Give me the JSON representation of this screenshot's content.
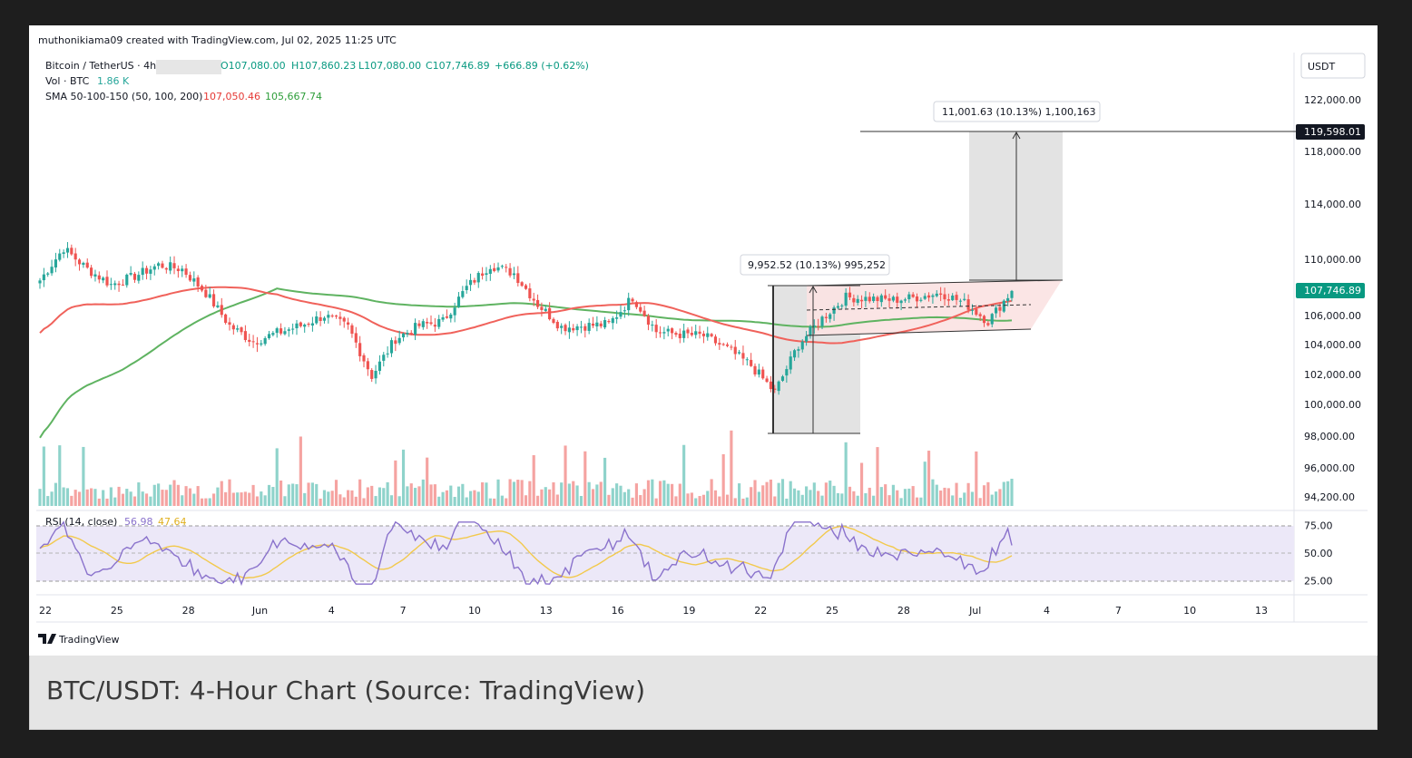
{
  "header": {
    "created_line": "muthonikiama09 created with TradingView.com, Jul 02, 2025 11:25 UTC",
    "symbol": "Bitcoin / TetherUS · 4h",
    "ohlc": {
      "open": "O107,080.00",
      "high": "H107,860.23",
      "low": "L107,080.00",
      "close": "C107,746.89",
      "change": "+666.89 (+0.62%)"
    },
    "vol_label": "Vol · BTC",
    "vol_value": "1.86 K",
    "sma_label": "SMA 50-100-150 (50, 100, 200)",
    "sma_value_1": "107,050.46",
    "sma_value_2": "105,667.74"
  },
  "currency_button": "USDT",
  "price_axis": [
    "122,000.00",
    "118,000.00",
    "114,000.00",
    "110,000.00",
    "106,000.00",
    "104,000.00",
    "102,000.00",
    "100,000.00",
    "98,000.00",
    "96,000.00",
    "94,200.00"
  ],
  "price_tags": {
    "target": "119,598.01",
    "current": "107,746.89"
  },
  "measure_labels": {
    "pole": "9,952.52 (10.13%) 995,252",
    "projection": "11,001.63 (10.13%) 1,100,163"
  },
  "rsi": {
    "label": "RSI (14, close)",
    "value_1": "56.98",
    "value_2": "47.64",
    "axis": [
      "75.00",
      "50.00",
      "25.00"
    ]
  },
  "time_axis": [
    "22",
    "25",
    "28",
    "Jun",
    "4",
    "7",
    "10",
    "13",
    "16",
    "19",
    "22",
    "25",
    "28",
    "Jul",
    "4",
    "7",
    "10",
    "13"
  ],
  "logo_text": "TradingView",
  "caption": "BTC/USDT: 4-Hour Chart (Source: TradingView)",
  "colors": {
    "up": "#26a69a",
    "down": "#ef5350",
    "sma_fast": "#f0625b",
    "sma_slow": "#5fb361",
    "rsi_line": "#8a72cc",
    "rsi_ma": "#f2c94c",
    "rsi_band": "#ece8f8"
  },
  "chart_data": {
    "type": "candlestick",
    "title": "Bitcoin / TetherUS · 4h",
    "ylim": [
      94200,
      123000
    ],
    "x_ticks": [
      "22",
      "25",
      "28",
      "Jun",
      "4",
      "7",
      "10",
      "13",
      "16",
      "19",
      "22",
      "25",
      "28",
      "Jul",
      "4",
      "7",
      "10",
      "13"
    ],
    "close_path": [
      {
        "x": "22 May",
        "y": 108500
      },
      {
        "x": "23 May",
        "y": 110800
      },
      {
        "x": "24 May",
        "y": 109300
      },
      {
        "x": "25 May",
        "y": 108200
      },
      {
        "x": "26 May",
        "y": 108800
      },
      {
        "x": "27 May",
        "y": 109600
      },
      {
        "x": "28 May",
        "y": 109300
      },
      {
        "x": "29 May",
        "y": 107600
      },
      {
        "x": "30 May",
        "y": 105300
      },
      {
        "x": "31 May",
        "y": 104200
      },
      {
        "x": "1 Jun",
        "y": 104800
      },
      {
        "x": "2 Jun",
        "y": 105300
      },
      {
        "x": "3 Jun",
        "y": 106000
      },
      {
        "x": "4 Jun",
        "y": 105200
      },
      {
        "x": "5 Jun",
        "y": 101900
      },
      {
        "x": "6 Jun",
        "y": 104400
      },
      {
        "x": "7 Jun",
        "y": 105300
      },
      {
        "x": "8 Jun",
        "y": 105600
      },
      {
        "x": "9 Jun",
        "y": 108000
      },
      {
        "x": "10 Jun",
        "y": 109600
      },
      {
        "x": "11 Jun",
        "y": 109000
      },
      {
        "x": "12 Jun",
        "y": 106800
      },
      {
        "x": "13 Jun",
        "y": 105200
      },
      {
        "x": "14 Jun",
        "y": 105300
      },
      {
        "x": "15 Jun",
        "y": 105400
      },
      {
        "x": "16 Jun",
        "y": 107300
      },
      {
        "x": "17 Jun",
        "y": 104900
      },
      {
        "x": "18 Jun",
        "y": 104700
      },
      {
        "x": "19 Jun",
        "y": 104600
      },
      {
        "x": "20 Jun",
        "y": 103700
      },
      {
        "x": "21 Jun",
        "y": 102600
      },
      {
        "x": "22 Jun",
        "y": 100800
      },
      {
        "x": "23 Jun",
        "y": 104000
      },
      {
        "x": "24 Jun",
        "y": 105800
      },
      {
        "x": "25 Jun",
        "y": 107300
      },
      {
        "x": "26 Jun",
        "y": 107200
      },
      {
        "x": "27 Jun",
        "y": 107100
      },
      {
        "x": "28 Jun",
        "y": 107300
      },
      {
        "x": "29 Jun",
        "y": 107600
      },
      {
        "x": "30 Jun",
        "y": 106900
      },
      {
        "x": "1 Jul",
        "y": 105600
      },
      {
        "x": "2 Jul",
        "y": 107747
      }
    ],
    "series": [
      {
        "values_at_start_and_end": [
          104800,
          107050
        ]
      },
      {
        "values_at_start_and_end": [
          97900,
          105668
        ]
      }
    ],
    "bull_flag": {
      "pole_low": 98200,
      "pole_high": 108300,
      "flag_top": 108400,
      "flag_bottom": 105200,
      "target": 119598.01,
      "move_pct": 10.13
    },
    "rsi": {
      "range": [
        25,
        75
      ],
      "ma": 47.64,
      "last": 56.98
    }
  }
}
